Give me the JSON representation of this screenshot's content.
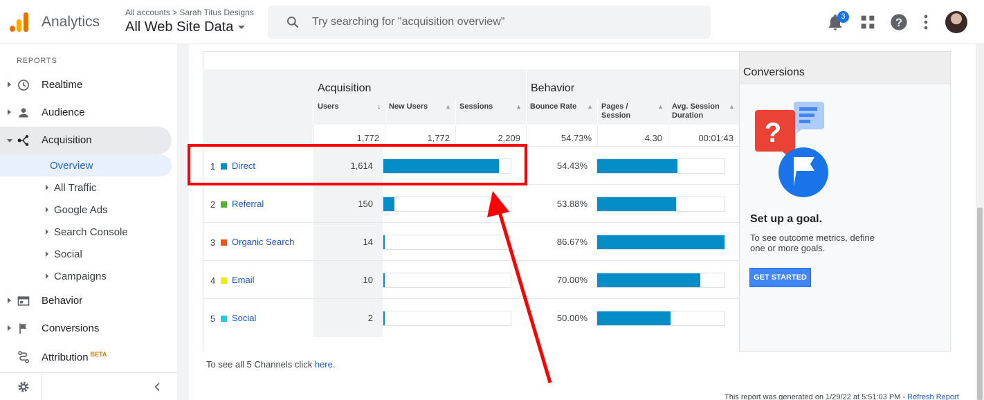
{
  "header": {
    "app_name": "Analytics",
    "breadcrumb": "All accounts > Sarah Titus Designs",
    "property": "All Web Site Data",
    "search_placeholder": "Try searching for \"acquisition overview\"",
    "notification_count": "3"
  },
  "sidebar": {
    "section_label": "REPORTS",
    "items": [
      {
        "label": "Realtime",
        "icon": "clock-icon"
      },
      {
        "label": "Audience",
        "icon": "person-icon"
      },
      {
        "label": "Acquisition",
        "icon": "acquisition-icon"
      },
      {
        "label": "Behavior",
        "icon": "behavior-icon"
      },
      {
        "label": "Conversions",
        "icon": "flag-icon"
      },
      {
        "label": "Attribution",
        "icon": "attribution-icon",
        "badge": "BETA"
      }
    ],
    "sub_items": [
      "Overview",
      "All Traffic",
      "Google Ads",
      "Search Console",
      "Social",
      "Campaigns"
    ]
  },
  "table": {
    "group_acquisition": "Acquisition",
    "group_behavior": "Behavior",
    "columns": [
      "Users",
      "New Users",
      "Sessions",
      "Bounce Rate",
      "Pages / Session",
      "Avg. Session Duration"
    ],
    "totals": [
      "1,772",
      "1,772",
      "2,209",
      "54.73%",
      "4.30",
      "00:01:43"
    ],
    "rows": [
      {
        "idx": "1",
        "channel": "Direct",
        "color": "#058dc7",
        "users": "1,614",
        "users_frac": 0.91,
        "bounce": "54.43%",
        "bounce_frac": 0.628
      },
      {
        "idx": "2",
        "channel": "Referral",
        "color": "#50b432",
        "users": "150",
        "users_frac": 0.085,
        "bounce": "53.88%",
        "bounce_frac": 0.621
      },
      {
        "idx": "3",
        "channel": "Organic Search",
        "color": "#ed561b",
        "users": "14",
        "users_frac": 0.008,
        "bounce": "86.67%",
        "bounce_frac": 1.0
      },
      {
        "idx": "4",
        "channel": "Email",
        "color": "#edef00",
        "users": "10",
        "users_frac": 0.006,
        "bounce": "70.00%",
        "bounce_frac": 0.808
      },
      {
        "idx": "5",
        "channel": "Social",
        "color": "#24cbe5",
        "users": "2",
        "users_frac": 0.001,
        "bounce": "50.00%",
        "bounce_frac": 0.577
      }
    ]
  },
  "conversions": {
    "title": "Conversions",
    "goal_title": "Set up a goal.",
    "goal_desc": "To see outcome metrics, define one or more goals.",
    "button": "GET STARTED"
  },
  "footer": {
    "see_all_prefix": "To see all 5 Channels click ",
    "see_all_link": "here.",
    "generated": "This report was generated on 1/29/22 at 5:51:03 PM - ",
    "refresh": "Refresh Report"
  }
}
